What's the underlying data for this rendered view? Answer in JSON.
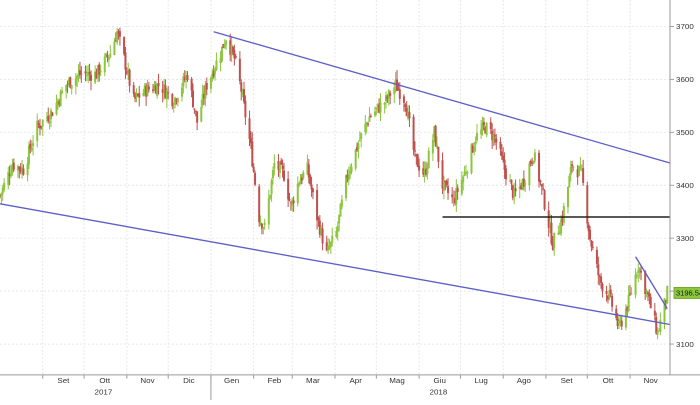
{
  "chart_data": {
    "type": "candlestick",
    "title": "",
    "xlabel": "",
    "ylabel": "",
    "ylim": [
      3040,
      3750
    ],
    "y_ticks": [
      3100,
      3200,
      3300,
      3400,
      3500,
      3600,
      3700
    ],
    "y_tick_labels": [
      "3100",
      "3200",
      "3300",
      "3400",
      "3500",
      "3600",
      "3700"
    ],
    "x_range": [
      "2017-08-01",
      "2018-11-30"
    ],
    "x_ticks": [
      {
        "date": "2017-09-01",
        "label": "Set"
      },
      {
        "date": "2017-10-01",
        "label": "Ott"
      },
      {
        "date": "2017-11-01",
        "label": "Nov"
      },
      {
        "date": "2017-12-01",
        "label": "Dic"
      },
      {
        "date": "2018-01-01",
        "label": "Gen"
      },
      {
        "date": "2018-02-01",
        "label": "Feb"
      },
      {
        "date": "2018-03-01",
        "label": "Mar"
      },
      {
        "date": "2018-04-01",
        "label": "Apr"
      },
      {
        "date": "2018-05-01",
        "label": "Mag"
      },
      {
        "date": "2018-06-01",
        "label": "Giu"
      },
      {
        "date": "2018-07-01",
        "label": "Lug"
      },
      {
        "date": "2018-08-01",
        "label": "Ago"
      },
      {
        "date": "2018-09-01",
        "label": "Set"
      },
      {
        "date": "2018-10-01",
        "label": "Ott"
      },
      {
        "date": "2018-11-01",
        "label": "Nov"
      }
    ],
    "year_labels": [
      {
        "date": "2017-10-15",
        "label": "2017"
      },
      {
        "date": "2018-06-15",
        "label": "2018"
      }
    ],
    "year_separator": "2018-01-01",
    "grid": true,
    "last_value_label": "3196.5400",
    "last_value": 3196.54,
    "colors": {
      "up": "#8cc63f",
      "down": "#c0504d",
      "trendline": "#5b5fc7",
      "support": "#222222",
      "label_bg": "#8cc63f",
      "grid": "#e6e6e6"
    },
    "trendlines": [
      {
        "name": "",
        "from": {
          "date": "2018-01-03",
          "value": 3690
        },
        "to": {
          "date": "2018-11-30",
          "value": 3442
        }
      },
      {
        "name": "",
        "from": {
          "date": "2017-08-01",
          "value": 3365
        },
        "to": {
          "date": "2018-11-30",
          "value": 3137
        }
      },
      {
        "name": "",
        "from": {
          "date": "2018-11-05",
          "value": 3265
        },
        "to": {
          "date": "2018-11-28",
          "value": 3167
        }
      }
    ],
    "support_line": {
      "from": "2018-06-18",
      "to": "2018-11-30",
      "value": 3340
    },
    "close_anchors": [
      [
        "2017-08-01",
        3380
      ],
      [
        "2017-08-10",
        3440
      ],
      [
        "2017-08-18",
        3430
      ],
      [
        "2017-08-28",
        3510
      ],
      [
        "2017-09-08",
        3540
      ],
      [
        "2017-09-18",
        3590
      ],
      [
        "2017-09-28",
        3610
      ],
      [
        "2017-10-10",
        3610
      ],
      [
        "2017-10-20",
        3650
      ],
      [
        "2017-10-25",
        3690
      ],
      [
        "2017-10-30",
        3640
      ],
      [
        "2017-11-06",
        3560
      ],
      [
        "2017-11-15",
        3580
      ],
      [
        "2017-11-25",
        3590
      ],
      [
        "2017-12-05",
        3560
      ],
      [
        "2017-12-15",
        3610
      ],
      [
        "2017-12-22",
        3520
      ],
      [
        "2017-12-29",
        3590
      ],
      [
        "2018-01-08",
        3650
      ],
      [
        "2018-01-12",
        3680
      ],
      [
        "2018-01-18",
        3640
      ],
      [
        "2018-01-23",
        3580
      ],
      [
        "2018-01-30",
        3470
      ],
      [
        "2018-02-05",
        3340
      ],
      [
        "2018-02-09",
        3320
      ],
      [
        "2018-02-16",
        3440
      ],
      [
        "2018-02-23",
        3420
      ],
      [
        "2018-02-28",
        3360
      ],
      [
        "2018-03-06",
        3410
      ],
      [
        "2018-03-12",
        3430
      ],
      [
        "2018-03-19",
        3340
      ],
      [
        "2018-03-26",
        3270
      ],
      [
        "2018-04-02",
        3310
      ],
      [
        "2018-04-10",
        3420
      ],
      [
        "2018-04-18",
        3480
      ],
      [
        "2018-04-26",
        3530
      ],
      [
        "2018-05-08",
        3560
      ],
      [
        "2018-05-15",
        3590
      ],
      [
        "2018-05-22",
        3560
      ],
      [
        "2018-05-29",
        3450
      ],
      [
        "2018-06-05",
        3420
      ],
      [
        "2018-06-12",
        3500
      ],
      [
        "2018-06-18",
        3400
      ],
      [
        "2018-06-26",
        3370
      ],
      [
        "2018-07-05",
        3430
      ],
      [
        "2018-07-12",
        3490
      ],
      [
        "2018-07-19",
        3510
      ],
      [
        "2018-07-26",
        3490
      ],
      [
        "2018-08-02",
        3430
      ],
      [
        "2018-08-09",
        3380
      ],
      [
        "2018-08-16",
        3410
      ],
      [
        "2018-08-23",
        3460
      ],
      [
        "2018-08-30",
        3380
      ],
      [
        "2018-09-06",
        3290
      ],
      [
        "2018-09-13",
        3340
      ],
      [
        "2018-09-20",
        3440
      ],
      [
        "2018-09-27",
        3420
      ],
      [
        "2018-10-03",
        3300
      ],
      [
        "2018-10-10",
        3220
      ],
      [
        "2018-10-17",
        3190
      ],
      [
        "2018-10-24",
        3130
      ],
      [
        "2018-10-31",
        3180
      ],
      [
        "2018-11-07",
        3250
      ],
      [
        "2018-11-14",
        3190
      ],
      [
        "2018-11-21",
        3120
      ],
      [
        "2018-11-28",
        3196.54
      ]
    ]
  }
}
